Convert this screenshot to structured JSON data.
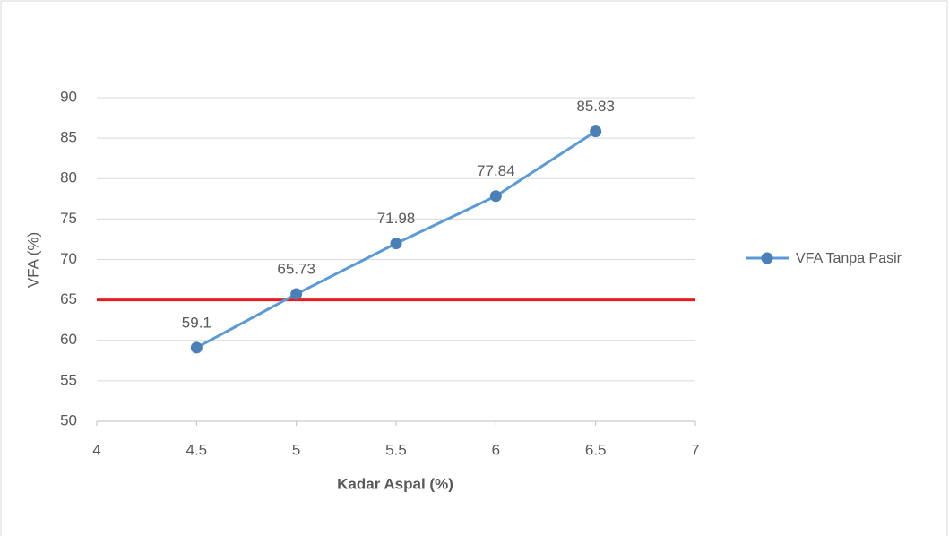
{
  "chart_data": {
    "type": "line",
    "x_label": "Kadar Aspal (%)",
    "y_label": "VFA (%)",
    "x": [
      4.5,
      5,
      5.5,
      6,
      6.5
    ],
    "series": [
      {
        "name": "VFA Tanpa Pasir",
        "color": "#5b9bd5",
        "marker_color": "#4a7fb8",
        "values": [
          59.1,
          65.73,
          71.98,
          77.84,
          85.83
        ]
      }
    ],
    "xlim": [
      4,
      7
    ],
    "xticks": [
      4,
      4.5,
      5,
      5.5,
      6,
      6.5,
      7
    ],
    "ylim": [
      50,
      90
    ],
    "yticks": [
      50,
      55,
      60,
      65,
      70,
      75,
      80,
      85,
      90
    ],
    "grid": true,
    "legend": "right",
    "reference_line": {
      "value": 65,
      "color": "#e81c1c"
    }
  }
}
